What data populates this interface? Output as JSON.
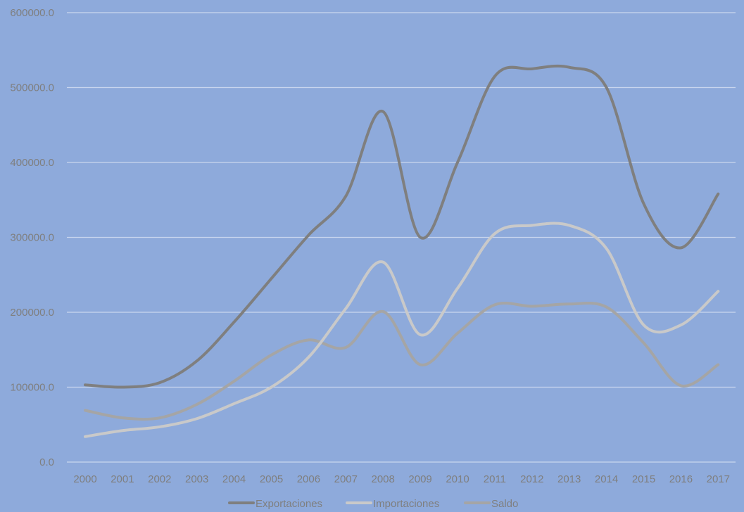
{
  "chart_data": {
    "type": "line",
    "title": "",
    "xlabel": "",
    "ylabel": "",
    "categories": [
      "2000",
      "2001",
      "2002",
      "2003",
      "2004",
      "2005",
      "2006",
      "2007",
      "2008",
      "2009",
      "2010",
      "2011",
      "2012",
      "2013",
      "2014",
      "2015",
      "2016",
      "2017"
    ],
    "y_ticks": [
      "0.0",
      "100000.0",
      "200000.0",
      "300000.0",
      "400000.0",
      "500000.0",
      "600000.0"
    ],
    "ylim": [
      0,
      600000
    ],
    "grid": true,
    "legend_position": "bottom",
    "background_color": "#8eaadb",
    "gridline_color": "#c9d6ee",
    "series": [
      {
        "name": "Exportaciones",
        "color": "#7f7f7f",
        "values": [
          103000,
          100000,
          106000,
          135000,
          187000,
          245000,
          303000,
          355000,
          468000,
          300000,
          400000,
          515000,
          525000,
          527000,
          500000,
          345000,
          286000,
          358000
        ]
      },
      {
        "name": "Importaciones",
        "color": "#c9c9c9",
        "values": [
          34000,
          42000,
          47000,
          58000,
          78000,
          100000,
          140000,
          205000,
          267000,
          170000,
          232000,
          305000,
          316000,
          316000,
          285000,
          183000,
          183000,
          228000
        ]
      },
      {
        "name": "Saldo",
        "color": "#a5a5a5",
        "values": [
          69000,
          59000,
          59000,
          77000,
          108000,
          143000,
          163000,
          153000,
          201000,
          130000,
          172000,
          210000,
          208000,
          211000,
          207000,
          159000,
          102000,
          130000
        ]
      }
    ]
  }
}
